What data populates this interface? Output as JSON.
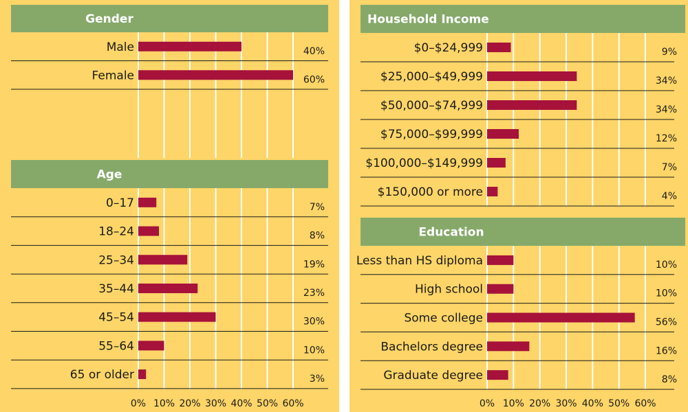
{
  "chart_data": [
    {
      "type": "bar",
      "orientation": "horizontal",
      "title": "Gender",
      "categories": [
        "Male",
        "Female"
      ],
      "values": [
        40,
        60
      ],
      "value_labels": [
        "40%",
        "60%"
      ],
      "xlim": [
        0,
        60
      ]
    },
    {
      "type": "bar",
      "orientation": "horizontal",
      "title": "Age",
      "categories": [
        "0–17",
        "18–24",
        "25–34",
        "35–44",
        "45–54",
        "55–64",
        "65 or older"
      ],
      "values": [
        7,
        8,
        19,
        23,
        30,
        10,
        3
      ],
      "value_labels": [
        "7%",
        "8%",
        "19%",
        "23%",
        "30%",
        "10%",
        "3%"
      ],
      "xlim": [
        0,
        60
      ]
    },
    {
      "type": "bar",
      "orientation": "horizontal",
      "title": "Household Income",
      "categories": [
        "$0–$24,999",
        "$25,000–$49,999",
        "$50,000–$74,999",
        "$75,000–$99,999",
        "$100,000–$149,999",
        "$150,000 or more"
      ],
      "values": [
        9,
        34,
        34,
        12,
        7,
        4
      ],
      "value_labels": [
        "9%",
        "34%",
        "34%",
        "12%",
        "7%",
        "4%"
      ],
      "xlim": [
        0,
        60
      ]
    },
    {
      "type": "bar",
      "orientation": "horizontal",
      "title": "Education",
      "categories": [
        "Less than HS diploma",
        "High school",
        "Some college",
        "Bachelors degree",
        "Graduate degree"
      ],
      "values": [
        10,
        10,
        56,
        16,
        8
      ],
      "value_labels": [
        "10%",
        "10%",
        "56%",
        "16%",
        "8%"
      ],
      "xlim": [
        0,
        60
      ]
    }
  ],
  "axis": {
    "ticks": [
      0,
      10,
      20,
      30,
      40,
      50,
      60
    ],
    "tick_labels": [
      "0%",
      "10%",
      "20%",
      "30%",
      "40%",
      "50%",
      "60%"
    ]
  },
  "colors": {
    "background": "#fdd568",
    "header": "#86a96a",
    "bar": "#a6123a"
  }
}
